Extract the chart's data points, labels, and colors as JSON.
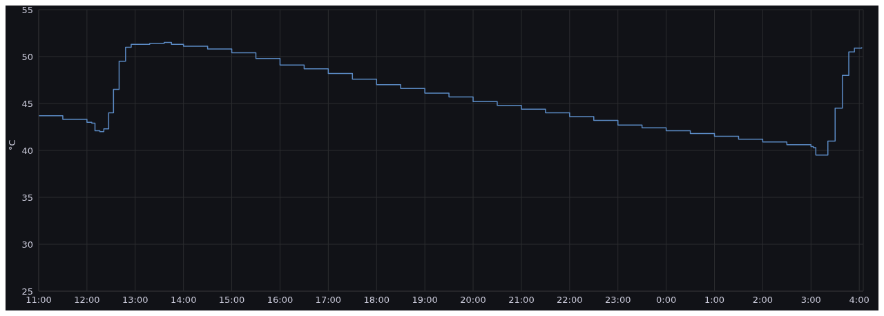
{
  "chart_data": {
    "type": "step",
    "ylabel": "°C",
    "x": [
      "--01-01T11:00",
      "--01-01T11:30",
      "--01-01T12:00",
      "--01-01T12:06",
      "--01-01T12:10",
      "--01-01T12:16",
      "--01-01T12:21",
      "--01-01T12:27",
      "--01-01T12:33",
      "--01-01T12:40",
      "--01-01T12:48",
      "--01-01T12:55",
      "--01-01T13:18",
      "--01-01T13:36",
      "--01-01T13:45",
      "--01-01T14:00",
      "--01-01T14:30",
      "--01-01T15:00",
      "--01-01T15:30",
      "--01-01T16:00",
      "--01-01T16:30",
      "--01-01T17:00",
      "--01-01T17:30",
      "--01-01T18:00",
      "--01-01T18:30",
      "--01-01T19:00",
      "--01-01T19:30",
      "--01-01T20:00",
      "--01-01T20:30",
      "--01-01T21:00",
      "--01-01T21:30",
      "--01-01T22:00",
      "--01-01T22:30",
      "--01-01T23:00",
      "--01-01T23:30",
      "--01-02T00:00",
      "--01-02T00:30",
      "--01-02T01:00",
      "--01-02T01:30",
      "--01-02T02:00",
      "--01-02T02:30",
      "--01-02T03:00",
      "--01-02T03:03",
      "--01-02T03:06",
      "--01-02T03:15",
      "--01-02T03:21",
      "--01-02T03:30",
      "--01-02T03:39",
      "--01-02T03:47",
      "--01-02T03:54",
      "--01-02T04:03"
    ],
    "series": [
      {
        "color": "#5b8ac4",
        "values": [
          43.7,
          43.3,
          43.0,
          42.9,
          42.1,
          42.0,
          42.3,
          44.0,
          46.5,
          49.5,
          51.0,
          51.3,
          51.4,
          51.5,
          51.3,
          51.1,
          50.8,
          50.4,
          49.8,
          49.1,
          48.7,
          48.2,
          47.6,
          47.0,
          46.6,
          46.1,
          45.7,
          45.2,
          44.8,
          44.4,
          44.0,
          43.6,
          43.2,
          42.7,
          42.4,
          42.1,
          41.8,
          41.5,
          41.2,
          40.9,
          40.6,
          40.4,
          40.3,
          39.5,
          39.5,
          41.0,
          44.5,
          48.0,
          50.5,
          50.9,
          51.0
        ]
      }
    ],
    "xlim": [
      "--01-01T11:00",
      "--01-02T04:05"
    ],
    "xticks": [
      {
        "value": "--01-01T11:00",
        "label": "11:00"
      },
      {
        "value": "--01-01T12:00",
        "label": "12:00"
      },
      {
        "value": "--01-01T13:00",
        "label": "13:00"
      },
      {
        "value": "--01-01T14:00",
        "label": "14:00"
      },
      {
        "value": "--01-01T15:00",
        "label": "15:00"
      },
      {
        "value": "--01-01T16:00",
        "label": "16:00"
      },
      {
        "value": "--01-01T17:00",
        "label": "17:00"
      },
      {
        "value": "--01-01T18:00",
        "label": "18:00"
      },
      {
        "value": "--01-01T19:00",
        "label": "19:00"
      },
      {
        "value": "--01-01T20:00",
        "label": "20:00"
      },
      {
        "value": "--01-01T21:00",
        "label": "21:00"
      },
      {
        "value": "--01-01T22:00",
        "label": "22:00"
      },
      {
        "value": "--01-01T23:00",
        "label": "23:00"
      },
      {
        "value": "--01-02T00:00",
        "label": "0:00"
      },
      {
        "value": "--01-02T01:00",
        "label": "1:00"
      },
      {
        "value": "--01-02T02:00",
        "label": "2:00"
      },
      {
        "value": "--01-02T03:00",
        "label": "3:00"
      },
      {
        "value": "--01-02T04:00",
        "label": "4:00"
      }
    ],
    "ylim": [
      25,
      55
    ],
    "yticks": [
      25,
      30,
      35,
      40,
      45,
      50,
      55
    ],
    "grid": true,
    "line_style": "solid",
    "marker": "none"
  }
}
